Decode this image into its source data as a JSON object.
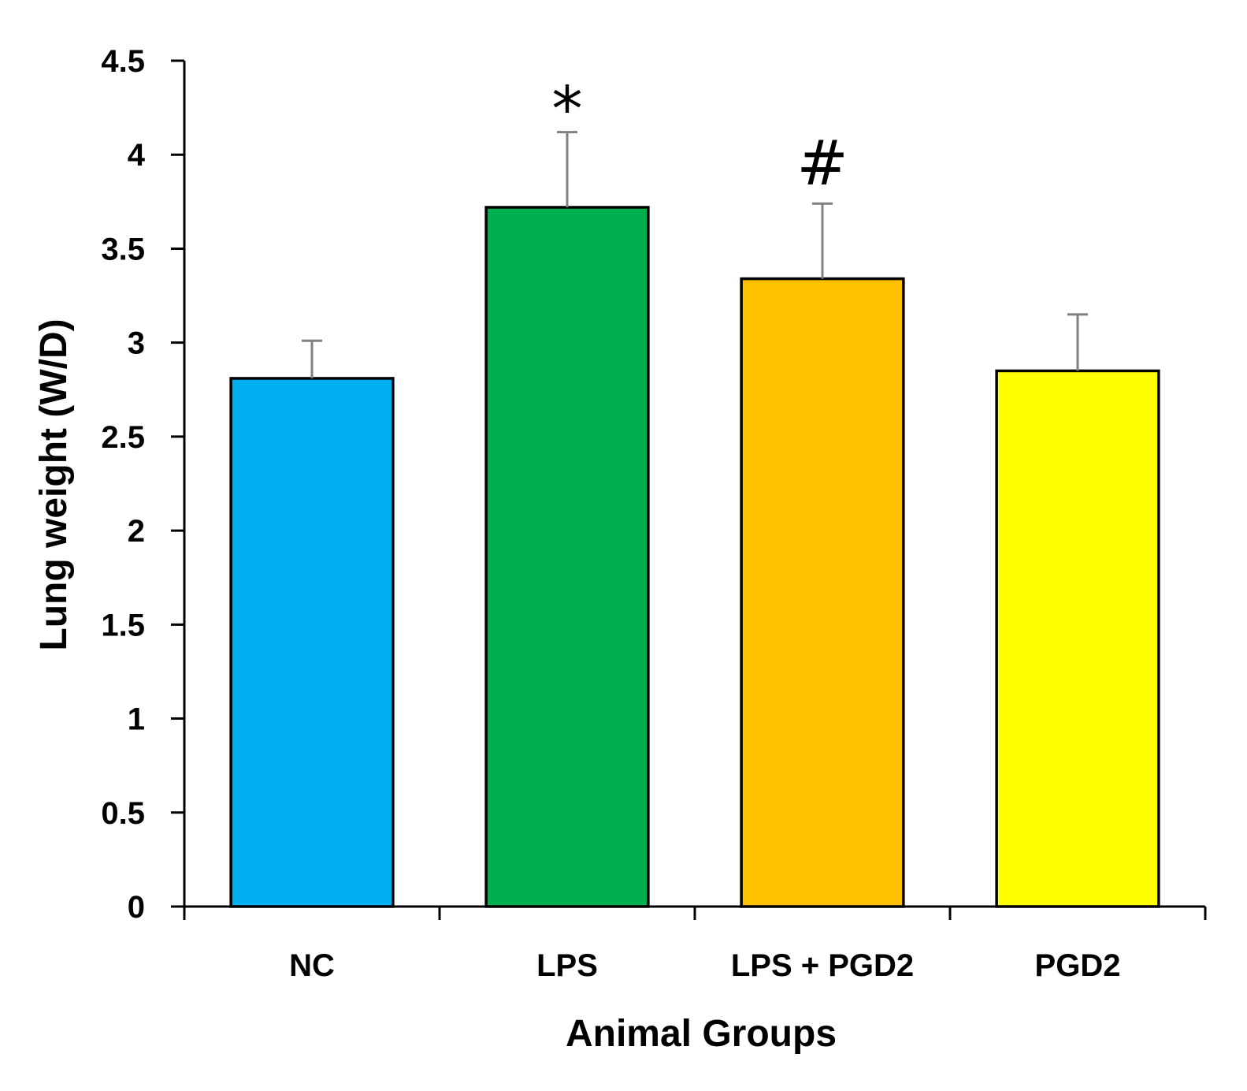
{
  "chart_data": {
    "type": "bar",
    "title": "",
    "xlabel": "Animal Groups",
    "ylabel": "Lung weight (W/D)",
    "categories": [
      "NC",
      "LPS",
      "LPS + PGD2",
      "PGD2"
    ],
    "values": [
      2.81,
      3.72,
      3.34,
      2.85
    ],
    "errors": [
      0.2,
      0.4,
      0.4,
      0.3
    ],
    "colors": [
      "#00B0F0",
      "#00B050",
      "#FFC000",
      "#FFFF00"
    ],
    "annotations": [
      "",
      "*",
      "#",
      ""
    ],
    "ylim": [
      0,
      4.5
    ],
    "yticks": [
      "0",
      "0.5",
      "1",
      "1.5",
      "2",
      "2.5",
      "3",
      "3.5",
      "4",
      "4.5"
    ],
    "grid": false,
    "legend": "none"
  }
}
